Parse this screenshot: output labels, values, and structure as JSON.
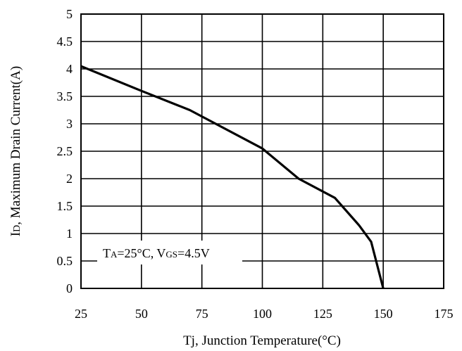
{
  "chart_data": {
    "type": "line",
    "x": [
      25,
      50,
      70,
      100,
      115,
      130,
      140,
      145,
      150
    ],
    "series": [
      {
        "values": [
          4.05,
          3.6,
          3.25,
          2.55,
          2.0,
          1.65,
          1.15,
          0.85,
          0.0
        ]
      }
    ],
    "xlim": [
      25,
      175
    ],
    "ylim": [
      0,
      5
    ],
    "x_ticks": [
      "25",
      "50",
      "75",
      "100",
      "125",
      "150",
      "175"
    ],
    "y_ticks": [
      "0",
      "0.5",
      "1",
      "1.5",
      "2",
      "2.5",
      "3",
      "3.5",
      "4",
      "4.5",
      "5"
    ],
    "xlabel": "Tj, Junction Temperature(°C)",
    "ylabel_main": "I",
    "ylabel_sub": "D",
    "ylabel_rest": ", Maximum Drain Current(A)",
    "annotation": {
      "ta_main": "T",
      "ta_sub": "A",
      "ta_rest": "=25°C, V",
      "vgs_sub": "GS",
      "vgs_rest": "=4.5V"
    },
    "grid": true,
    "line_color": "#000000"
  }
}
